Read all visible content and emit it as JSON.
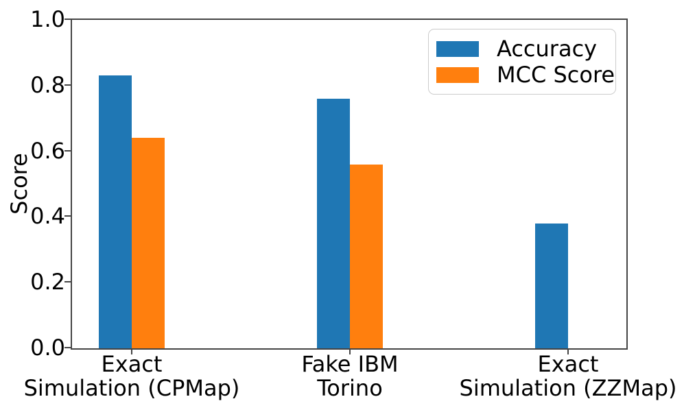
{
  "chart_data": {
    "type": "bar",
    "title": "",
    "xlabel": "",
    "ylabel": "Score",
    "categories": [
      [
        "Exact",
        "Simulation (CPMap)"
      ],
      [
        "Fake IBM",
        "Torino"
      ],
      [
        "Exact",
        "Simulation (ZZMap)"
      ]
    ],
    "series": [
      {
        "name": "Accuracy",
        "color": "#1f77b4",
        "values": [
          0.83,
          0.76,
          0.38
        ]
      },
      {
        "name": "MCC Score",
        "color": "#ff7f0e",
        "values": [
          0.64,
          0.56,
          0.0
        ]
      }
    ],
    "ylim": [
      0.0,
      1.0
    ],
    "yticks": [
      "0.0",
      "0.2",
      "0.4",
      "0.6",
      "0.8",
      "1.0"
    ],
    "grid": false,
    "legend_position": "upper right",
    "axis_color": "#444444",
    "background_color": "#ffffff"
  }
}
